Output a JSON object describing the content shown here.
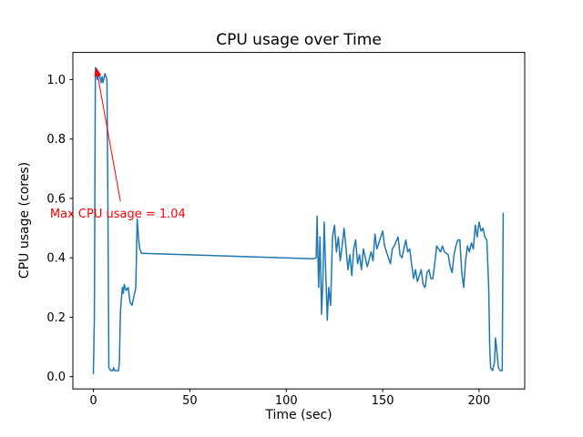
{
  "chart_data": {
    "type": "line",
    "title": "CPU usage over Time",
    "xlabel": "Time (sec)",
    "ylabel": "CPU usage (cores)",
    "xlim": [
      -10.65,
      223.65
    ],
    "ylim": [
      -0.0415,
      1.0915
    ],
    "xticks": [
      0,
      50,
      100,
      150,
      200
    ],
    "yticks": [
      0.0,
      0.2,
      0.4,
      0.6,
      0.8,
      1.0
    ],
    "grid": false,
    "legend": "none",
    "line_color": "#1f77b4",
    "background_color": "#ffffff",
    "annotation": {
      "text": "Max CPU usage = 1.04",
      "color": "#ff0000",
      "text_xy": [
        -22.5,
        0.535
      ],
      "arrow_tail": [
        14,
        0.59
      ],
      "arrow_tip": [
        1.5,
        1.04
      ]
    },
    "points": [
      [
        0,
        0.01
      ],
      [
        0.5,
        0.2
      ],
      [
        1,
        1.04
      ],
      [
        2,
        1.0
      ],
      [
        3,
        1.02
      ],
      [
        4,
        0.99
      ],
      [
        4.5,
        1.01
      ],
      [
        5,
        0.99
      ],
      [
        6,
        1.02
      ],
      [
        7,
        1.0
      ],
      [
        7.5,
        0.6
      ],
      [
        8,
        0.03
      ],
      [
        9,
        0.02
      ],
      [
        10,
        0.02
      ],
      [
        10.5,
        0.03
      ],
      [
        11,
        0.02
      ],
      [
        12,
        0.02
      ],
      [
        13,
        0.02
      ],
      [
        13.5,
        0.05
      ],
      [
        14,
        0.22
      ],
      [
        15,
        0.3
      ],
      [
        15.5,
        0.28
      ],
      [
        16,
        0.31
      ],
      [
        17,
        0.29
      ],
      [
        18,
        0.3
      ],
      [
        19,
        0.25
      ],
      [
        20,
        0.24
      ],
      [
        21,
        0.27
      ],
      [
        22,
        0.3
      ],
      [
        22.7,
        0.53
      ],
      [
        23.5,
        0.46
      ],
      [
        24,
        0.43
      ],
      [
        25,
        0.415
      ],
      [
        114,
        0.397
      ],
      [
        115.5,
        0.4
      ],
      [
        116,
        0.54
      ],
      [
        116.8,
        0.3
      ],
      [
        117.5,
        0.47
      ],
      [
        118.3,
        0.21
      ],
      [
        119,
        0.33
      ],
      [
        119.7,
        0.52
      ],
      [
        120.5,
        0.35
      ],
      [
        121.3,
        0.19
      ],
      [
        122,
        0.3
      ],
      [
        123,
        0.24
      ],
      [
        124,
        0.47
      ],
      [
        125,
        0.51
      ],
      [
        126,
        0.42
      ],
      [
        127,
        0.47
      ],
      [
        128,
        0.39
      ],
      [
        129,
        0.44
      ],
      [
        130,
        0.5
      ],
      [
        131,
        0.43
      ],
      [
        132,
        0.36
      ],
      [
        133,
        0.41
      ],
      [
        134,
        0.34
      ],
      [
        135,
        0.43
      ],
      [
        136,
        0.46
      ],
      [
        137,
        0.38
      ],
      [
        138,
        0.41
      ],
      [
        139,
        0.36
      ],
      [
        140,
        0.43
      ],
      [
        142,
        0.37
      ],
      [
        144,
        0.42
      ],
      [
        145,
        0.39
      ],
      [
        146,
        0.48
      ],
      [
        147,
        0.43
      ],
      [
        148,
        0.45
      ],
      [
        150,
        0.49
      ],
      [
        151,
        0.44
      ],
      [
        152,
        0.42
      ],
      [
        154,
        0.38
      ],
      [
        155,
        0.43
      ],
      [
        156,
        0.44
      ],
      [
        158,
        0.47
      ],
      [
        159,
        0.41
      ],
      [
        160,
        0.4
      ],
      [
        162,
        0.46
      ],
      [
        163,
        0.42
      ],
      [
        164,
        0.43
      ],
      [
        165,
        0.38
      ],
      [
        166,
        0.33
      ],
      [
        167,
        0.36
      ],
      [
        168,
        0.32
      ],
      [
        170,
        0.36
      ],
      [
        171,
        0.31
      ],
      [
        172,
        0.3
      ],
      [
        173,
        0.35
      ],
      [
        174,
        0.36
      ],
      [
        175,
        0.33
      ],
      [
        176,
        0.33
      ],
      [
        177,
        0.38
      ],
      [
        178,
        0.44
      ],
      [
        180,
        0.42
      ],
      [
        181,
        0.44
      ],
      [
        182,
        0.42
      ],
      [
        184,
        0.41
      ],
      [
        185,
        0.37
      ],
      [
        186,
        0.35
      ],
      [
        187,
        0.41
      ],
      [
        188,
        0.44
      ],
      [
        189,
        0.46
      ],
      [
        190,
        0.46
      ],
      [
        191,
        0.35
      ],
      [
        192,
        0.3
      ],
      [
        193,
        0.39
      ],
      [
        194,
        0.44
      ],
      [
        195,
        0.42
      ],
      [
        196,
        0.45
      ],
      [
        197,
        0.43
      ],
      [
        198,
        0.51
      ],
      [
        199,
        0.47
      ],
      [
        200,
        0.52
      ],
      [
        201,
        0.49
      ],
      [
        202,
        0.5
      ],
      [
        203,
        0.47
      ],
      [
        204,
        0.46
      ],
      [
        205,
        0.3
      ],
      [
        205.5,
        0.1
      ],
      [
        206,
        0.03
      ],
      [
        207,
        0.02
      ],
      [
        208,
        0.05
      ],
      [
        208.5,
        0.13
      ],
      [
        209,
        0.1
      ],
      [
        210,
        0.03
      ],
      [
        211,
        0.02
      ],
      [
        212,
        0.02
      ],
      [
        212.5,
        0.55
      ]
    ]
  }
}
